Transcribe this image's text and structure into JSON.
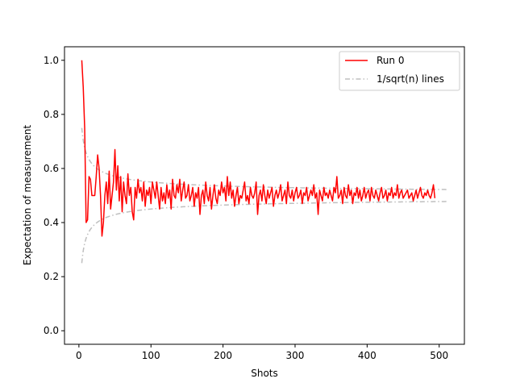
{
  "chart_data": {
    "type": "line",
    "xlabel": "Shots",
    "ylabel": "Expectation of measurement",
    "xlim": [
      -20,
      535
    ],
    "ylim": [
      -0.05,
      1.05
    ],
    "xticks": [
      0,
      100,
      200,
      300,
      400,
      500
    ],
    "yticks": [
      0.0,
      0.2,
      0.4,
      0.6,
      0.8,
      1.0
    ],
    "xtick_labels": [
      "0",
      "100",
      "200",
      "300",
      "400",
      "500"
    ],
    "ytick_labels": [
      "0.0",
      "0.2",
      "0.4",
      "0.6",
      "0.8",
      "1.0"
    ],
    "grid": false,
    "legend_position": "top-right",
    "series": [
      {
        "name": "Run 0",
        "color": "#ff0000",
        "style": "solid",
        "x_start": 4,
        "x_step": 2,
        "values": [
          1.0,
          0.9,
          0.75,
          0.4,
          0.41,
          0.57,
          0.56,
          0.5,
          0.5,
          0.5,
          0.57,
          0.65,
          0.6,
          0.5,
          0.35,
          0.4,
          0.5,
          0.55,
          0.47,
          0.59,
          0.45,
          0.5,
          0.55,
          0.67,
          0.52,
          0.61,
          0.48,
          0.57,
          0.44,
          0.55,
          0.5,
          0.47,
          0.58,
          0.5,
          0.53,
          0.44,
          0.41,
          0.53,
          0.49,
          0.56,
          0.51,
          0.53,
          0.48,
          0.55,
          0.46,
          0.52,
          0.5,
          0.53,
          0.47,
          0.55,
          0.52,
          0.49,
          0.55,
          0.5,
          0.45,
          0.53,
          0.48,
          0.51,
          0.47,
          0.54,
          0.49,
          0.52,
          0.45,
          0.56,
          0.5,
          0.49,
          0.54,
          0.51,
          0.56,
          0.48,
          0.52,
          0.55,
          0.49,
          0.5,
          0.54,
          0.48,
          0.5,
          0.53,
          0.46,
          0.51,
          0.49,
          0.53,
          0.43,
          0.5,
          0.52,
          0.47,
          0.55,
          0.5,
          0.48,
          0.53,
          0.45,
          0.5,
          0.54,
          0.49,
          0.47,
          0.52,
          0.5,
          0.55,
          0.51,
          0.53,
          0.48,
          0.57,
          0.5,
          0.55,
          0.49,
          0.52,
          0.46,
          0.5,
          0.53,
          0.47,
          0.5,
          0.49,
          0.52,
          0.55,
          0.48,
          0.5,
          0.47,
          0.53,
          0.5,
          0.49,
          0.51,
          0.55,
          0.43,
          0.5,
          0.52,
          0.48,
          0.54,
          0.5,
          0.47,
          0.52,
          0.49,
          0.51,
          0.53,
          0.46,
          0.5,
          0.52,
          0.49,
          0.51,
          0.54,
          0.48,
          0.5,
          0.52,
          0.47,
          0.55,
          0.5,
          0.49,
          0.52,
          0.48,
          0.51,
          0.53,
          0.49,
          0.5,
          0.52,
          0.47,
          0.51,
          0.5,
          0.53,
          0.48,
          0.5,
          0.52,
          0.5,
          0.54,
          0.49,
          0.51,
          0.43,
          0.52,
          0.5,
          0.48,
          0.53,
          0.5,
          0.51,
          0.49,
          0.52,
          0.5,
          0.48,
          0.53,
          0.51,
          0.57,
          0.49,
          0.5,
          0.52,
          0.47,
          0.53,
          0.5,
          0.49,
          0.54,
          0.5,
          0.52,
          0.47,
          0.51,
          0.5,
          0.53,
          0.49,
          0.52,
          0.48,
          0.5,
          0.53,
          0.49,
          0.51,
          0.52,
          0.48,
          0.53,
          0.5,
          0.49,
          0.52,
          0.5,
          0.48,
          0.51,
          0.53,
          0.49,
          0.5,
          0.52,
          0.48,
          0.51,
          0.5,
          0.53,
          0.49,
          0.51,
          0.5,
          0.54,
          0.49,
          0.51,
          0.52,
          0.49,
          0.5,
          0.51,
          0.52,
          0.49,
          0.5,
          0.51,
          0.48,
          0.5,
          0.52,
          0.49,
          0.51,
          0.53,
          0.5,
          0.49,
          0.51,
          0.5,
          0.52,
          0.5,
          0.49,
          0.51,
          0.54,
          0.49
        ]
      },
      {
        "name": "1/sqrt(n) lines",
        "color": "#bfbfbf",
        "style": "dashdot",
        "formula_upper": "0.5 + 1/(2*sqrt(n))",
        "formula_lower": "0.5 - 1/(2*sqrt(n))",
        "x_range": [
          4,
          510
        ]
      }
    ]
  }
}
